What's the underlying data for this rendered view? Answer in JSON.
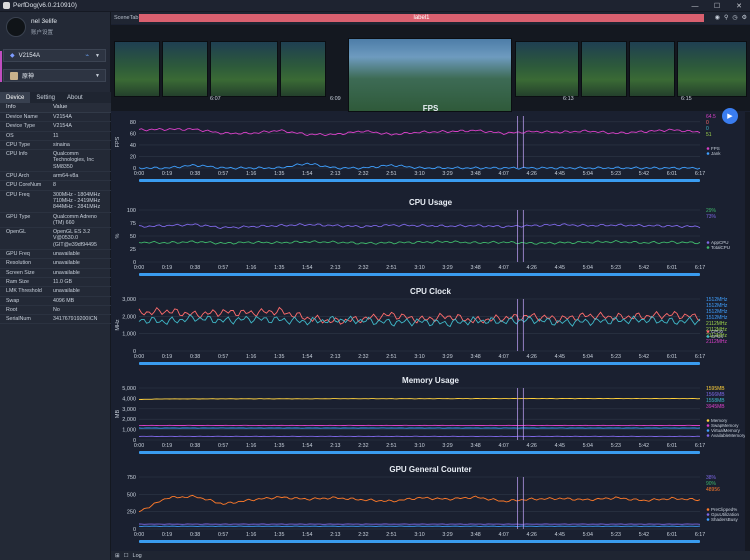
{
  "window": {
    "title": "PerfDog(v6.0.210910)",
    "controls": [
      "—",
      "☐",
      "✕"
    ]
  },
  "user": {
    "name": "nel 3elife",
    "sub": "账户设置"
  },
  "device_select": {
    "value": "V2154A"
  },
  "app_select": {
    "value": "原神"
  },
  "tabs": [
    "Device",
    "Setting",
    "About"
  ],
  "info_table": {
    "headers": [
      "Info",
      "Value"
    ],
    "rows": [
      [
        "Device Name",
        "V2154A"
      ],
      [
        "Device Type",
        "V2154A"
      ],
      [
        "OS",
        "11"
      ],
      [
        "CPU Type",
        "sinaina"
      ],
      [
        "CPU Info",
        "Qualcomm Technologies, Inc SM8350"
      ],
      [
        "CPU Arch",
        "arm64-v8a"
      ],
      [
        "CPU CoreNum",
        "8"
      ],
      [
        "CPU Freq",
        "300MHz - 1804MHz 710MHz - 2419MHz 844MHz - 2841MHz"
      ],
      [
        "GPU Type",
        "Qualcomm Adreno (TM) 660"
      ],
      [
        "OpenGL",
        "OpenGL ES 3.2 V@0530.0 (GIT@e39df94495"
      ],
      [
        "GPU Freq",
        "unavailable"
      ],
      [
        "Resolution",
        "unavailable"
      ],
      [
        "Screen Size",
        "unavailable"
      ],
      [
        "Ram Size",
        "11.0 GB"
      ],
      [
        "LMK Threshold",
        "unavailable"
      ],
      [
        "Swap",
        "4096 MB"
      ],
      [
        "Root",
        "No"
      ],
      [
        "SerialNum",
        "341767919200ICN"
      ]
    ]
  },
  "scene": {
    "tab_label": "SceneTab",
    "label": "label1"
  },
  "thumbnails": {
    "times": [
      "6:07",
      "6:09",
      "6:13",
      "6:15"
    ]
  },
  "x_ticks": [
    "0:00",
    "0:19",
    "0:38",
    "0:57",
    "1:16",
    "1:35",
    "1:54",
    "2:13",
    "2:32",
    "2:51",
    "3:10",
    "3:29",
    "3:48",
    "4:07",
    "4:26",
    "4:45",
    "5:04",
    "5:23",
    "5:42",
    "6:01",
    "6:17"
  ],
  "bottom": {
    "log_label": "Log"
  },
  "colors": {
    "fps": "#d940c8",
    "cpu_app": "#7e68e6",
    "cpu_total": "#3fb86b",
    "accent": "#3a7df0",
    "label": "#d9606f"
  },
  "chart_data": [
    {
      "type": "line",
      "title": "FPS",
      "ylabel": "FPS",
      "ylim": [
        0,
        90
      ],
      "y_ticks": [
        0,
        20,
        40,
        60,
        80
      ],
      "series": [
        {
          "name": "FPS",
          "values": [
            66,
            67,
            67,
            60,
            60,
            65,
            58,
            58,
            64,
            58,
            62,
            63,
            65,
            60,
            63,
            62,
            64,
            60,
            63,
            66,
            62
          ]
        },
        {
          "name": "Jank",
          "values": [
            0,
            0,
            5,
            0,
            0,
            0,
            8,
            0,
            0,
            5,
            0,
            0,
            0,
            0,
            0,
            0,
            0,
            0,
            0,
            0,
            0
          ]
        }
      ],
      "legend": [
        "avg",
        "Jank(×100)",
        "Stutter(%)",
        "InterFrame"
      ],
      "right_values": [
        "64.5",
        "0",
        "0",
        "51"
      ]
    },
    {
      "type": "line",
      "title": "CPU Usage",
      "ylabel": "%",
      "ylim": [
        0,
        100
      ],
      "y_ticks": [
        0,
        25,
        50,
        75,
        100
      ],
      "series": [
        {
          "name": "AppCPU",
          "values": [
            68,
            70,
            72,
            66,
            68,
            70,
            72,
            70,
            68,
            71,
            70,
            69,
            70,
            68,
            70,
            72,
            70,
            71,
            70,
            69,
            68
          ]
        },
        {
          "name": "TotalCPU",
          "values": [
            38,
            37,
            39,
            36,
            38,
            37,
            39,
            38,
            36,
            37,
            38,
            39,
            37,
            38,
            36,
            37,
            38,
            39,
            37,
            38,
            37
          ]
        }
      ],
      "right_values": [
        "29%",
        "73%"
      ]
    },
    {
      "type": "line",
      "title": "CPU Clock",
      "ylabel": "MHz",
      "ylim": [
        0,
        3000
      ],
      "y_ticks": [
        0,
        1000,
        2000,
        3000
      ],
      "series": [
        {
          "name": "CPU0",
          "values": [
            2200,
            2300,
            2100,
            2250,
            2200,
            2300,
            1900,
            1700,
            1850,
            2100,
            1800,
            2000,
            1750,
            1900,
            2000,
            1850,
            2050,
            1950,
            2000,
            2100,
            1950
          ]
        },
        {
          "name": "CPU4",
          "values": [
            1800,
            1700,
            1900,
            1750,
            1850,
            1800,
            1700,
            1800,
            1750,
            1650,
            1700,
            1600,
            1750,
            1700,
            1800,
            1650,
            1700,
            1750,
            1800,
            1700,
            1750
          ]
        }
      ],
      "right_values": [
        "1512MHz",
        "1512MHz",
        "1512MHz",
        "1512MHz",
        "2112MHz",
        "2112MHz",
        "2112MHz",
        "2112MHz"
      ]
    },
    {
      "type": "line",
      "title": "Memory Usage",
      "ylabel": "MB",
      "ylim": [
        0,
        5000
      ],
      "y_ticks": [
        0,
        1000,
        2000,
        3000,
        4000,
        5000
      ],
      "series": [
        {
          "name": "Memory",
          "values": [
            3900,
            3950,
            3950,
            3960,
            3960,
            3960,
            3960,
            3970,
            3970,
            3970,
            3970,
            3970,
            3980,
            3980,
            3980,
            3980,
            3980,
            3980,
            3980,
            3980,
            3980
          ]
        },
        {
          "name": "SwapMemory",
          "values": [
            1400,
            1400,
            1400,
            1400,
            1400,
            1400,
            1400,
            1400,
            1400,
            1400,
            1400,
            1400,
            1400,
            1400,
            1400,
            1400,
            1400,
            1400,
            1400,
            1400,
            1400
          ]
        },
        {
          "name": "VirtualMemory",
          "values": [
            1150,
            1150,
            1150,
            1150,
            1150,
            1150,
            1150,
            1150,
            1150,
            1150,
            1150,
            1150,
            1150,
            1150,
            1150,
            1150,
            1150,
            1150,
            1150,
            1150,
            1150
          ]
        },
        {
          "name": "AvailableMemory",
          "values": [
            350,
            350,
            350,
            350,
            350,
            350,
            350,
            350,
            350,
            350,
            350,
            350,
            350,
            350,
            350,
            350,
            350,
            350,
            350,
            350,
            350
          ]
        }
      ],
      "right_values": [
        "1595MB",
        "1566MB",
        "1558MB",
        "3945MB"
      ]
    },
    {
      "type": "line",
      "title": "GPU General Counter",
      "ylabel": "",
      "ylim": [
        0,
        750
      ],
      "y_ticks": [
        0,
        250,
        500,
        750
      ],
      "series": [
        {
          "name": "PreClipped%",
          "values": [
            250,
            450,
            470,
            360,
            420,
            460,
            430,
            450,
            420,
            400,
            450,
            430,
            460,
            400,
            430,
            440,
            420,
            450,
            410,
            440,
            420
          ]
        },
        {
          "name": "GpuUtilization",
          "values": [
            70,
            70,
            70,
            70,
            70,
            70,
            70,
            70,
            70,
            70,
            70,
            70,
            70,
            70,
            70,
            70,
            70,
            70,
            70,
            70,
            70
          ]
        },
        {
          "name": "ShadersBusy",
          "values": [
            40,
            40,
            40,
            40,
            40,
            40,
            40,
            40,
            40,
            40,
            40,
            40,
            40,
            40,
            40,
            40,
            40,
            40,
            40,
            40,
            40
          ]
        }
      ],
      "right_values": [
        "38%",
        "90%",
        "48956"
      ]
    }
  ]
}
